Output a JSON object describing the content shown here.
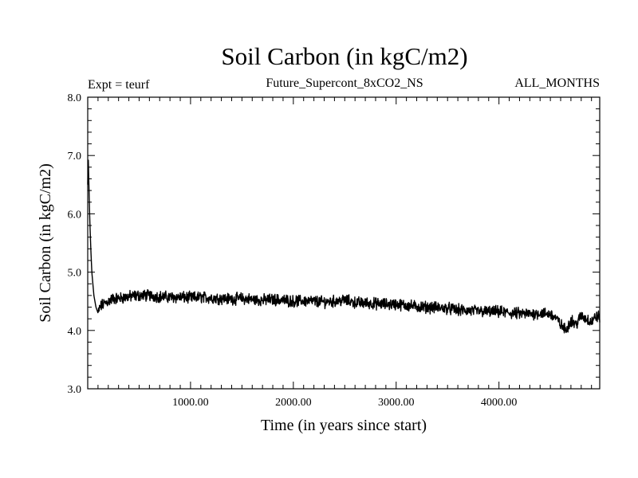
{
  "chart_data": {
    "type": "line",
    "title": "Soil Carbon (in kgC/m2)",
    "subtitle": "Future_Supercont_8xCO2_NS",
    "annotation_left": "Expt = teurf",
    "annotation_right": "ALL_MONTHS",
    "xlabel": "Time (in years since start)",
    "ylabel": "Soil Carbon (in kgC/m2)",
    "xlim": [
      0,
      4980
    ],
    "ylim": [
      3.0,
      8.0
    ],
    "x_ticks": [
      1000,
      2000,
      3000,
      4000
    ],
    "x_tick_labels": [
      "1000.00",
      "2000.00",
      "3000.00",
      "4000.00"
    ],
    "y_ticks": [
      3.0,
      4.0,
      5.0,
      6.0,
      7.0,
      8.0
    ],
    "y_tick_labels": [
      "3.0",
      "4.0",
      "5.0",
      "6.0",
      "7.0",
      "8.0"
    ],
    "grid": false,
    "legend": "none",
    "line_color": "#000000",
    "series": [
      {
        "x": [
          0,
          5,
          10,
          20,
          30,
          40,
          60,
          80,
          100,
          120,
          150,
          200,
          250,
          300,
          400,
          500,
          600,
          700,
          800,
          900,
          1000,
          1100,
          1200,
          1300,
          1400,
          1500,
          1600,
          1700,
          1800,
          1900,
          2000,
          2100,
          2200,
          2300,
          2400,
          2500,
          2600,
          2700,
          2800,
          2900,
          3000,
          3100,
          3200,
          3300,
          3400,
          3500,
          3600,
          3700,
          3800,
          3900,
          4000,
          4100,
          4200,
          4300,
          4400,
          4500,
          4550,
          4600,
          4650,
          4700,
          4750,
          4800,
          4850,
          4900,
          4950,
          4980
        ],
        "values": [
          6.5,
          7.0,
          6.6,
          5.9,
          5.4,
          5.0,
          4.6,
          4.4,
          4.3,
          4.4,
          4.45,
          4.5,
          4.55,
          4.55,
          4.58,
          4.6,
          4.6,
          4.58,
          4.57,
          4.57,
          4.56,
          4.57,
          4.56,
          4.55,
          4.54,
          4.55,
          4.53,
          4.52,
          4.53,
          4.52,
          4.5,
          4.51,
          4.5,
          4.49,
          4.5,
          4.52,
          4.48,
          4.47,
          4.46,
          4.45,
          4.45,
          4.43,
          4.41,
          4.4,
          4.39,
          4.38,
          4.35,
          4.34,
          4.33,
          4.32,
          4.32,
          4.3,
          4.29,
          4.28,
          4.3,
          4.28,
          4.22,
          4.1,
          4.0,
          4.18,
          4.1,
          4.25,
          4.2,
          4.15,
          4.25,
          4.22
        ]
      }
    ]
  }
}
